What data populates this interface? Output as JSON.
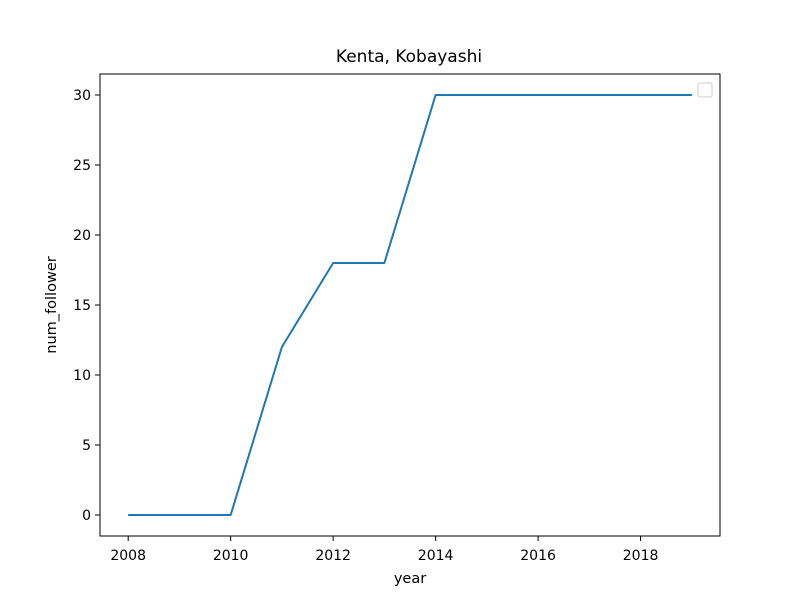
{
  "chart_data": {
    "type": "line",
    "title": "Kenta, Kobayashi",
    "xlabel": "year",
    "ylabel": "num_follower",
    "x": [
      2008,
      2009,
      2010,
      2011,
      2012,
      2013,
      2014,
      2015,
      2016,
      2017,
      2018,
      2019
    ],
    "series": [
      {
        "values": [
          0,
          0,
          0,
          12,
          18,
          18,
          30,
          30,
          30,
          30,
          30,
          30
        ],
        "color": "#1f77b4"
      }
    ],
    "xlim": [
      2007.45,
      2019.55
    ],
    "ylim": [
      -1.5,
      31.5
    ],
    "xticks": [
      "2008",
      "2010",
      "2012",
      "2014",
      "2016",
      "2018"
    ],
    "yticks": [
      "0",
      "5",
      "10",
      "15",
      "20",
      "25",
      "30"
    ],
    "grid": false,
    "legend": "top-right"
  }
}
